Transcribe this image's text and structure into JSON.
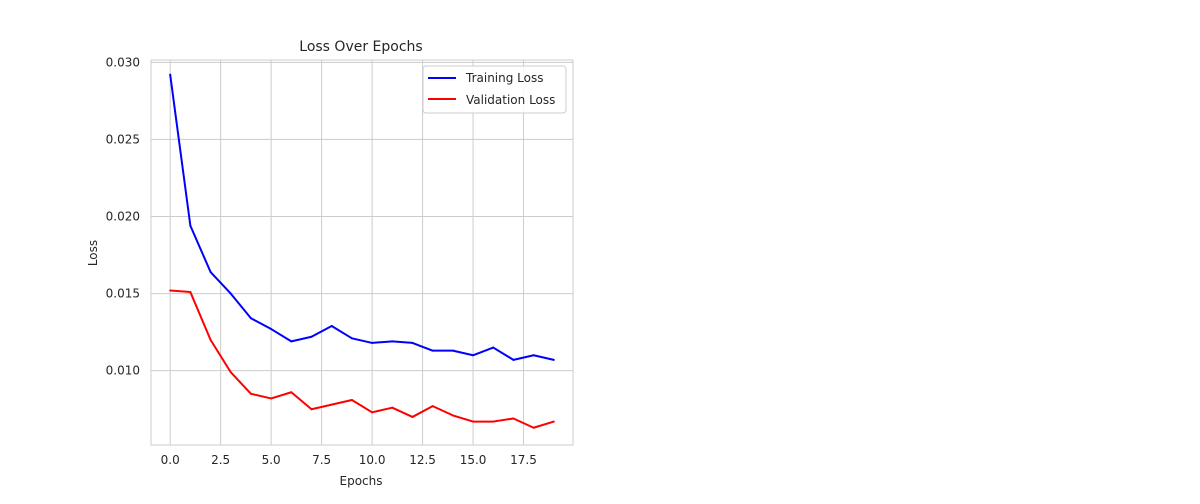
{
  "chart_data": {
    "type": "line",
    "title": "Loss Over Epochs",
    "xlabel": "Epochs",
    "ylabel": "Loss",
    "x": [
      0,
      1,
      2,
      3,
      4,
      5,
      6,
      7,
      8,
      9,
      10,
      11,
      12,
      13,
      14,
      15,
      16,
      17,
      18,
      19
    ],
    "xlim": [
      -0.95,
      19.95
    ],
    "ylim": [
      0.00518,
      0.03015
    ],
    "xticks": [
      0.0,
      2.5,
      5.0,
      7.5,
      10.0,
      12.5,
      15.0,
      17.5
    ],
    "xtick_labels": [
      "0.0",
      "2.5",
      "5.0",
      "7.5",
      "10.0",
      "12.5",
      "15.0",
      "17.5"
    ],
    "yticks": [
      0.01,
      0.015,
      0.02,
      0.025,
      0.03
    ],
    "ytick_labels": [
      "0.010",
      "0.015",
      "0.020",
      "0.025",
      "0.030"
    ],
    "grid": true,
    "legend_position": "top-right",
    "series": [
      {
        "name": "Training Loss",
        "color": "#0000ff",
        "values": [
          0.0292,
          0.0194,
          0.0164,
          0.015,
          0.0134,
          0.0127,
          0.0119,
          0.0122,
          0.0129,
          0.0121,
          0.0118,
          0.0119,
          0.0118,
          0.0113,
          0.0113,
          0.011,
          0.0115,
          0.0107,
          0.011,
          0.0107
        ]
      },
      {
        "name": "Validation Loss",
        "color": "#ff0000",
        "values": [
          0.0152,
          0.0151,
          0.012,
          0.0099,
          0.0085,
          0.0082,
          0.0086,
          0.0075,
          0.0078,
          0.0081,
          0.0073,
          0.0076,
          0.007,
          0.0077,
          0.0071,
          0.0067,
          0.0067,
          0.0069,
          0.0063,
          0.0067
        ]
      }
    ]
  }
}
